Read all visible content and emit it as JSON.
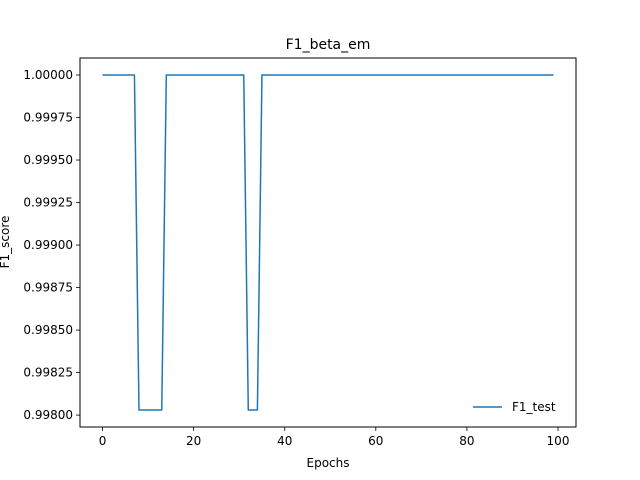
{
  "chart_data": {
    "type": "line",
    "title": "F1_beta_em",
    "xlabel": "Epochs",
    "ylabel": "F1_score",
    "xlim": [
      -4.95,
      103.95
    ],
    "ylim": [
      0.99793,
      1.0001
    ],
    "xticks": [
      0,
      20,
      40,
      60,
      80,
      100
    ],
    "xtick_labels": [
      "0",
      "20",
      "40",
      "60",
      "80",
      "100"
    ],
    "yticks": [
      0.998,
      0.99825,
      0.9985,
      0.99875,
      0.999,
      0.99925,
      0.9995,
      0.99975,
      1.0
    ],
    "ytick_labels": [
      "0.99800",
      "0.99825",
      "0.99850",
      "0.99875",
      "0.99900",
      "0.99925",
      "0.99950",
      "0.99975",
      "1.00000"
    ],
    "grid": false,
    "legend_position": "lower-right",
    "series": [
      {
        "name": "F1_test",
        "color": "#1f77b4",
        "x": [
          0,
          7,
          8,
          13,
          14,
          31,
          32,
          34,
          35,
          99
        ],
        "y": [
          1.0,
          1.0,
          0.99803,
          0.99803,
          1.0,
          1.0,
          0.99803,
          0.99803,
          1.0,
          1.0
        ]
      }
    ]
  }
}
